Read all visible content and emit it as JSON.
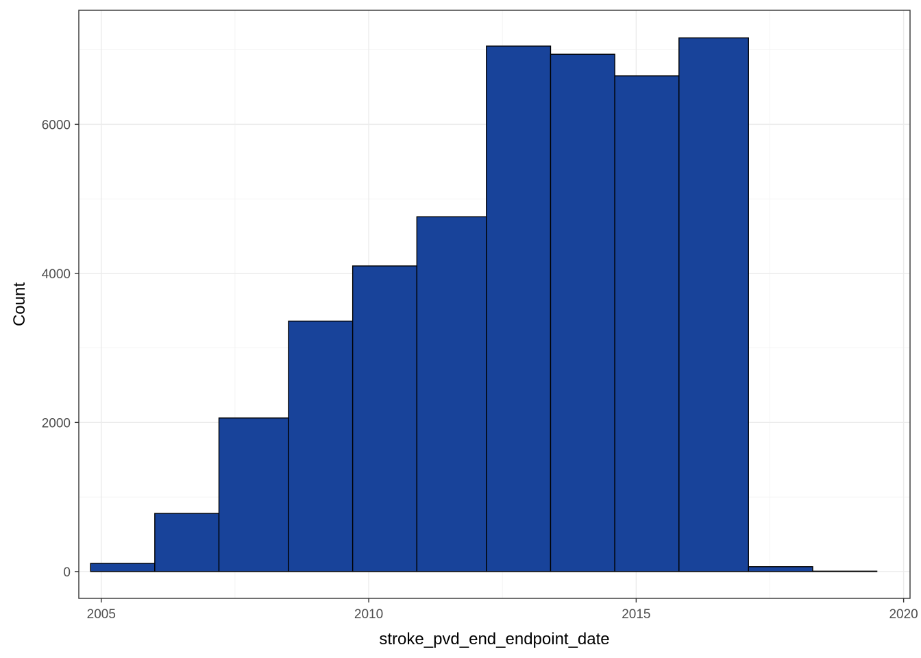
{
  "chart_data": {
    "type": "bar",
    "subtype": "histogram",
    "title": "",
    "xlabel": "stroke_pvd_end_endpoint_date",
    "ylabel": "Count",
    "x_ticks": [
      2005,
      2010,
      2015,
      2020
    ],
    "x_tick_labels": [
      "2005",
      "2010",
      "2015",
      "2020"
    ],
    "y_ticks": [
      0,
      2000,
      4000,
      6000
    ],
    "y_tick_labels": [
      "0",
      "2000",
      "4000",
      "6000"
    ],
    "xlim": [
      2004.58,
      2020.12
    ],
    "ylim": [
      -360,
      7530
    ],
    "grid": true,
    "bar_color": "#18439A",
    "bar_outline": "#000000",
    "bins": [
      {
        "start": 2004.8,
        "end": 2006.0,
        "count": 110
      },
      {
        "start": 2006.0,
        "end": 2007.2,
        "count": 780
      },
      {
        "start": 2007.2,
        "end": 2008.5,
        "count": 2060
      },
      {
        "start": 2008.5,
        "end": 2009.7,
        "count": 3360
      },
      {
        "start": 2009.7,
        "end": 2010.9,
        "count": 4100
      },
      {
        "start": 2010.9,
        "end": 2012.2,
        "count": 4760
      },
      {
        "start": 2012.2,
        "end": 2013.4,
        "count": 7050
      },
      {
        "start": 2013.4,
        "end": 2014.6,
        "count": 6940
      },
      {
        "start": 2014.6,
        "end": 2015.8,
        "count": 6650
      },
      {
        "start": 2015.8,
        "end": 2017.1,
        "count": 7160
      },
      {
        "start": 2017.1,
        "end": 2018.3,
        "count": 65
      },
      {
        "start": 2018.3,
        "end": 2019.5,
        "count": 5
      }
    ]
  }
}
